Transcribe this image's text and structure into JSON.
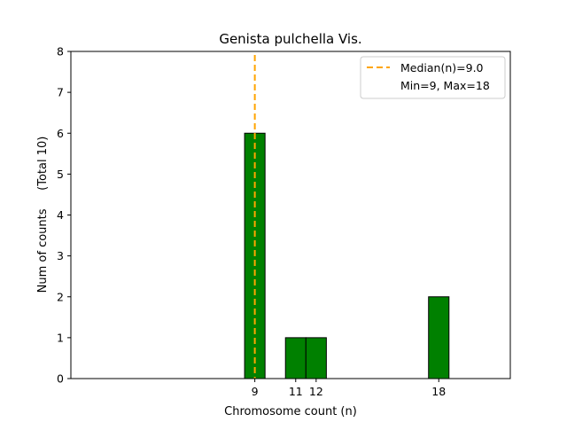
{
  "chart_data": {
    "type": "bar",
    "title": "Genista pulchella Vis.",
    "xlabel": "Chromosome count (n)",
    "ylabel": "Num of counts     (Total 10)",
    "xlim": [
      0,
      21.5
    ],
    "ylim": [
      0,
      8
    ],
    "bar_width": 1,
    "bars": [
      {
        "x": 9,
        "value": 6
      },
      {
        "x": 11,
        "value": 1
      },
      {
        "x": 12,
        "value": 1
      },
      {
        "x": 18,
        "value": 2
      }
    ],
    "x_ticks": [
      9,
      11,
      12,
      18
    ],
    "x_tick_labels": [
      "9",
      "11",
      "12",
      "18"
    ],
    "y_ticks": [
      0,
      1,
      2,
      3,
      4,
      5,
      6,
      7,
      8
    ],
    "y_tick_labels": [
      "0",
      "1",
      "2",
      "3",
      "4",
      "5",
      "6",
      "7",
      "8"
    ],
    "median": 9.0,
    "legend": {
      "position": "upper right",
      "entries": [
        "Median(n)=9.0",
        "Min=9, Max=18"
      ]
    },
    "colors": {
      "bar": "#008000",
      "bar_edge": "#000000",
      "median_line": "#FFA500"
    },
    "grid": false
  }
}
